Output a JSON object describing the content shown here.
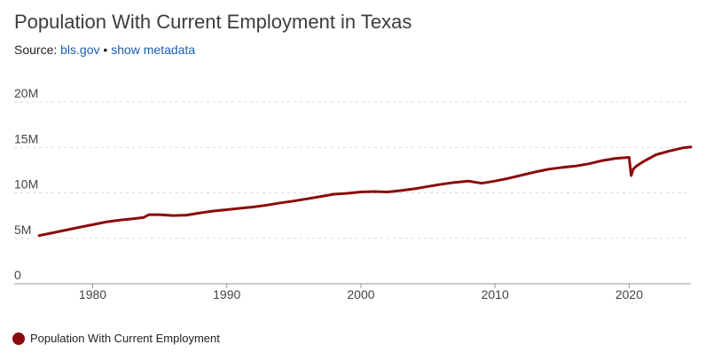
{
  "header": {
    "title": "Population With Current Employment in Texas",
    "source_prefix": "Source:",
    "source_link": "bls.gov",
    "separator": "•",
    "metadata_link": "show metadata"
  },
  "colors": {
    "series": "#8b0a0a",
    "grid": "#d9d9d9",
    "axis": "#999999",
    "link": "#1a5fb4"
  },
  "chart_data": {
    "type": "line",
    "title": "Population With Current Employment in Texas",
    "xlabel": "",
    "ylabel": "",
    "xlim": [
      1976,
      2024.6
    ],
    "ylim": [
      0,
      20000000
    ],
    "x_ticks": [
      1980,
      1990,
      2000,
      2010,
      2020
    ],
    "y_ticks": [
      0,
      5000000,
      10000000,
      15000000,
      20000000
    ],
    "y_tick_labels": [
      "0",
      "5M",
      "10M",
      "15M",
      "20M"
    ],
    "grid": "horizontal dashed",
    "legend_position": "bottom-left",
    "series": [
      {
        "name": "Population With Current Employment",
        "x": [
          1976,
          1977,
          1978,
          1979,
          1980,
          1981,
          1982,
          1983,
          1983.8,
          1984.2,
          1985,
          1986,
          1987,
          1988,
          1989,
          1990,
          1991,
          1992,
          1993,
          1994,
          1995,
          1996,
          1997,
          1998,
          1999,
          2000,
          2001,
          2002,
          2003,
          2004,
          2005,
          2006,
          2007,
          2008,
          2009,
          2010,
          2011,
          2012,
          2013,
          2014,
          2015,
          2016,
          2017,
          2018,
          2019,
          2020.0,
          2020.15,
          2020.3,
          2020.5,
          2021,
          2022,
          2023,
          2024,
          2024.6
        ],
        "values": [
          5300000,
          5600000,
          5900000,
          6200000,
          6500000,
          6800000,
          7000000,
          7150000,
          7300000,
          7600000,
          7600000,
          7500000,
          7550000,
          7800000,
          8000000,
          8150000,
          8300000,
          8450000,
          8650000,
          8900000,
          9100000,
          9350000,
          9600000,
          9850000,
          9950000,
          10100000,
          10150000,
          10100000,
          10250000,
          10450000,
          10700000,
          10950000,
          11150000,
          11300000,
          11050000,
          11300000,
          11600000,
          11950000,
          12300000,
          12600000,
          12800000,
          12950000,
          13200000,
          13550000,
          13800000,
          13900000,
          11900000,
          12600000,
          12900000,
          13400000,
          14200000,
          14600000,
          14950000,
          15050000
        ]
      }
    ]
  }
}
